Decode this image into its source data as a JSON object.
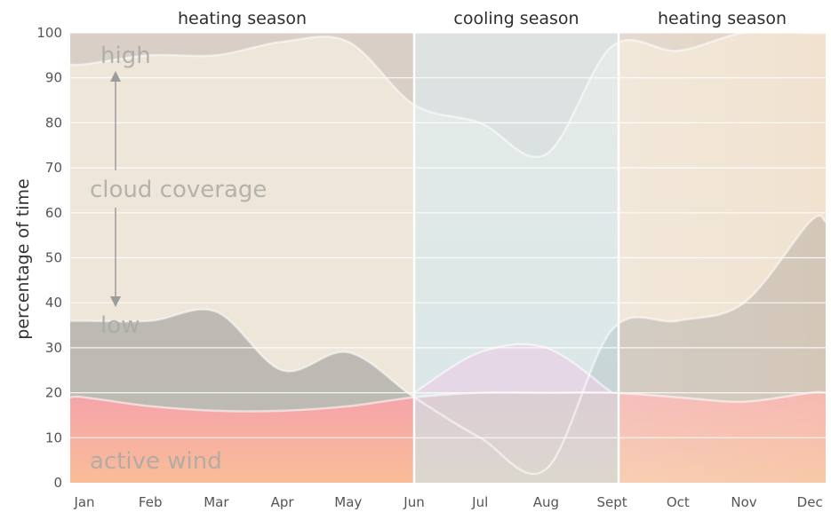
{
  "chart_data": {
    "type": "area",
    "title": "",
    "xlabel": "",
    "ylabel": "percentage of time",
    "ylim": [
      0,
      100
    ],
    "y_ticks": [
      "0",
      "10",
      "20",
      "30",
      "40",
      "50",
      "60",
      "70",
      "80",
      "90",
      "100"
    ],
    "x_ticks": [
      "Jan",
      "Feb",
      "Mar",
      "Apr",
      "May",
      "Jun",
      "Jul",
      "Aug",
      "Sept",
      "Oct",
      "Nov",
      "Dec"
    ],
    "grid": true,
    "seasons": [
      {
        "label": "heating season",
        "start": 0,
        "end": 5
      },
      {
        "label": "cooling season",
        "start": 5,
        "end": 8.1
      },
      {
        "label": "heating season",
        "start": 8.1,
        "end": 11
      }
    ],
    "annotations": {
      "high": "high",
      "low": "low",
      "cloud_coverage": "cloud coverage",
      "active_wind": "active wind"
    },
    "series": [
      {
        "name": "",
        "role": "active-wind-upper",
        "x": [
          0,
          1,
          2,
          3,
          4,
          5,
          6,
          7,
          8,
          9,
          10,
          11
        ],
        "values": [
          19,
          17,
          16,
          16,
          17,
          19,
          20,
          20,
          20,
          19,
          18,
          20
        ]
      },
      {
        "name": "",
        "role": "cloud-low",
        "x": [
          0,
          1,
          2,
          3,
          4,
          5,
          6,
          7,
          8,
          9,
          10,
          11
        ],
        "values": [
          36,
          36,
          38,
          25,
          29,
          19,
          10,
          3,
          34,
          36,
          40,
          58
        ]
      },
      {
        "name": "",
        "role": "cloud-high",
        "x": [
          0,
          1,
          2,
          3,
          4,
          5,
          6,
          7,
          8,
          9,
          10,
          11
        ],
        "values": [
          93,
          95,
          95,
          98,
          98,
          84,
          80,
          73,
          97,
          96,
          100,
          100
        ]
      },
      {
        "name": "",
        "role": "cooling-bump",
        "x": [
          5,
          6,
          7,
          8
        ],
        "values": [
          20,
          29,
          30,
          20
        ]
      }
    ],
    "colors": {
      "top_band": "#d9cfc6",
      "upper_mid": "#ede6d9",
      "lower_mid": "#bdbab3",
      "wind": "#f7a9a4",
      "wind_bottom": "#f8b99b",
      "cooling_blue": "#d0e8f0",
      "cooling_bump": "#ead0e6",
      "right_warm": "#f6dcc4"
    }
  }
}
